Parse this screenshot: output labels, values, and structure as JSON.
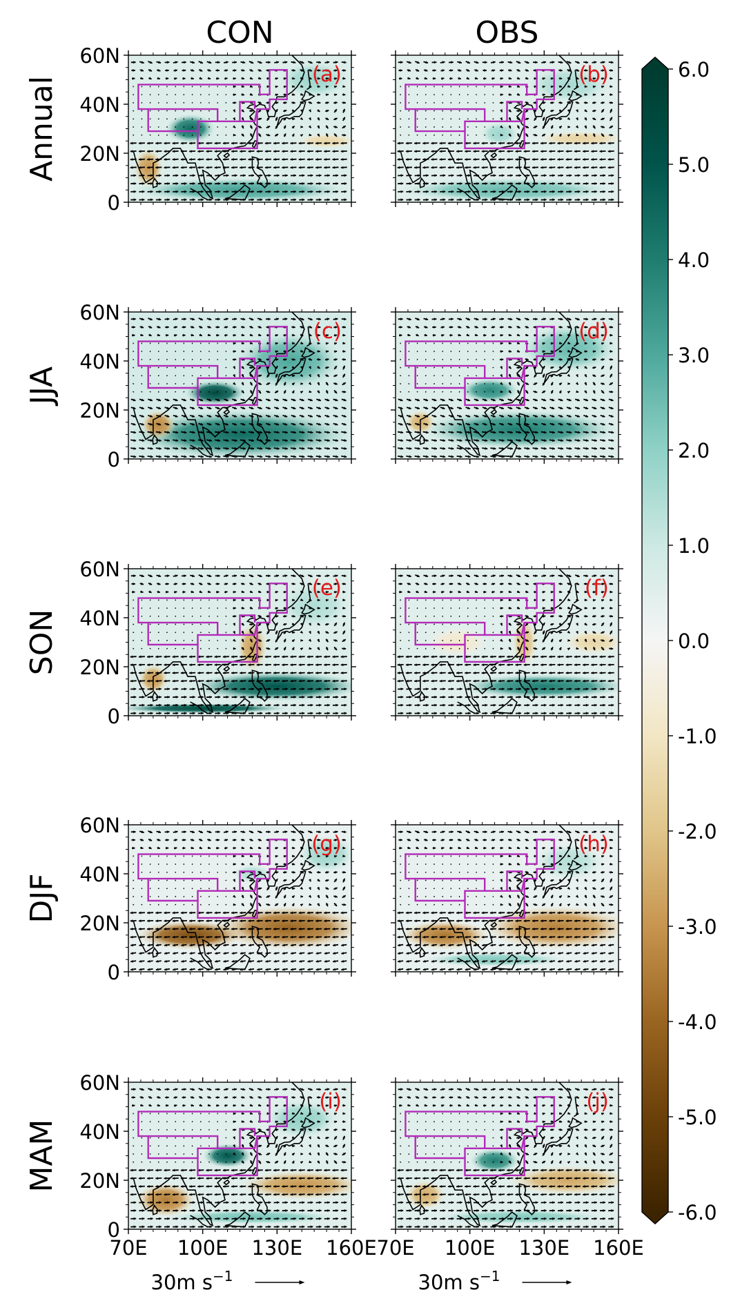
{
  "chart_data": {
    "type": "heatmap",
    "columns": [
      "CON",
      "OBS"
    ],
    "rows": [
      "Annual",
      "JJA",
      "SON",
      "DJF",
      "MAM"
    ],
    "panel_labels": [
      [
        "(a)",
        "(b)"
      ],
      [
        "(c)",
        "(d)"
      ],
      [
        "(e)",
        "(f)"
      ],
      [
        "(g)",
        "(h)"
      ],
      [
        "(i)",
        "(j)"
      ]
    ],
    "xticks": [
      "70E",
      "100E",
      "130E",
      "160E"
    ],
    "xtick_values": [
      70,
      100,
      130,
      160
    ],
    "yticks": [
      "0",
      "20N",
      "40N",
      "60N"
    ],
    "ytick_values": [
      0,
      20,
      40,
      60
    ],
    "xlim": [
      70,
      160
    ],
    "ylim": [
      0,
      60
    ],
    "vector_key": {
      "label": "30m s",
      "exponent": "−1"
    },
    "colorbar": {
      "min": -6.0,
      "max": 6.0,
      "extend": "both",
      "ticks": [
        "-6.0",
        "-5.0",
        "-4.0",
        "-3.0",
        "-2.0",
        "-1.0",
        "0.0",
        "1.0",
        "2.0",
        "3.0",
        "4.0",
        "5.0",
        "6.0"
      ],
      "tick_values": [
        -6,
        -5,
        -4,
        -3,
        -2,
        -1,
        0,
        1,
        2,
        3,
        4,
        5,
        6
      ],
      "colors": [
        "#3d2400",
        "#6b4009",
        "#9a6521",
        "#c7954f",
        "#e0c589",
        "#f2e6c4",
        "#f5f5f5",
        "#cde9e3",
        "#8fd1c6",
        "#4ea89c",
        "#1f7d70",
        "#01544b",
        "#003c30"
      ]
    },
    "region_outline_color": "#b22bb8"
  }
}
